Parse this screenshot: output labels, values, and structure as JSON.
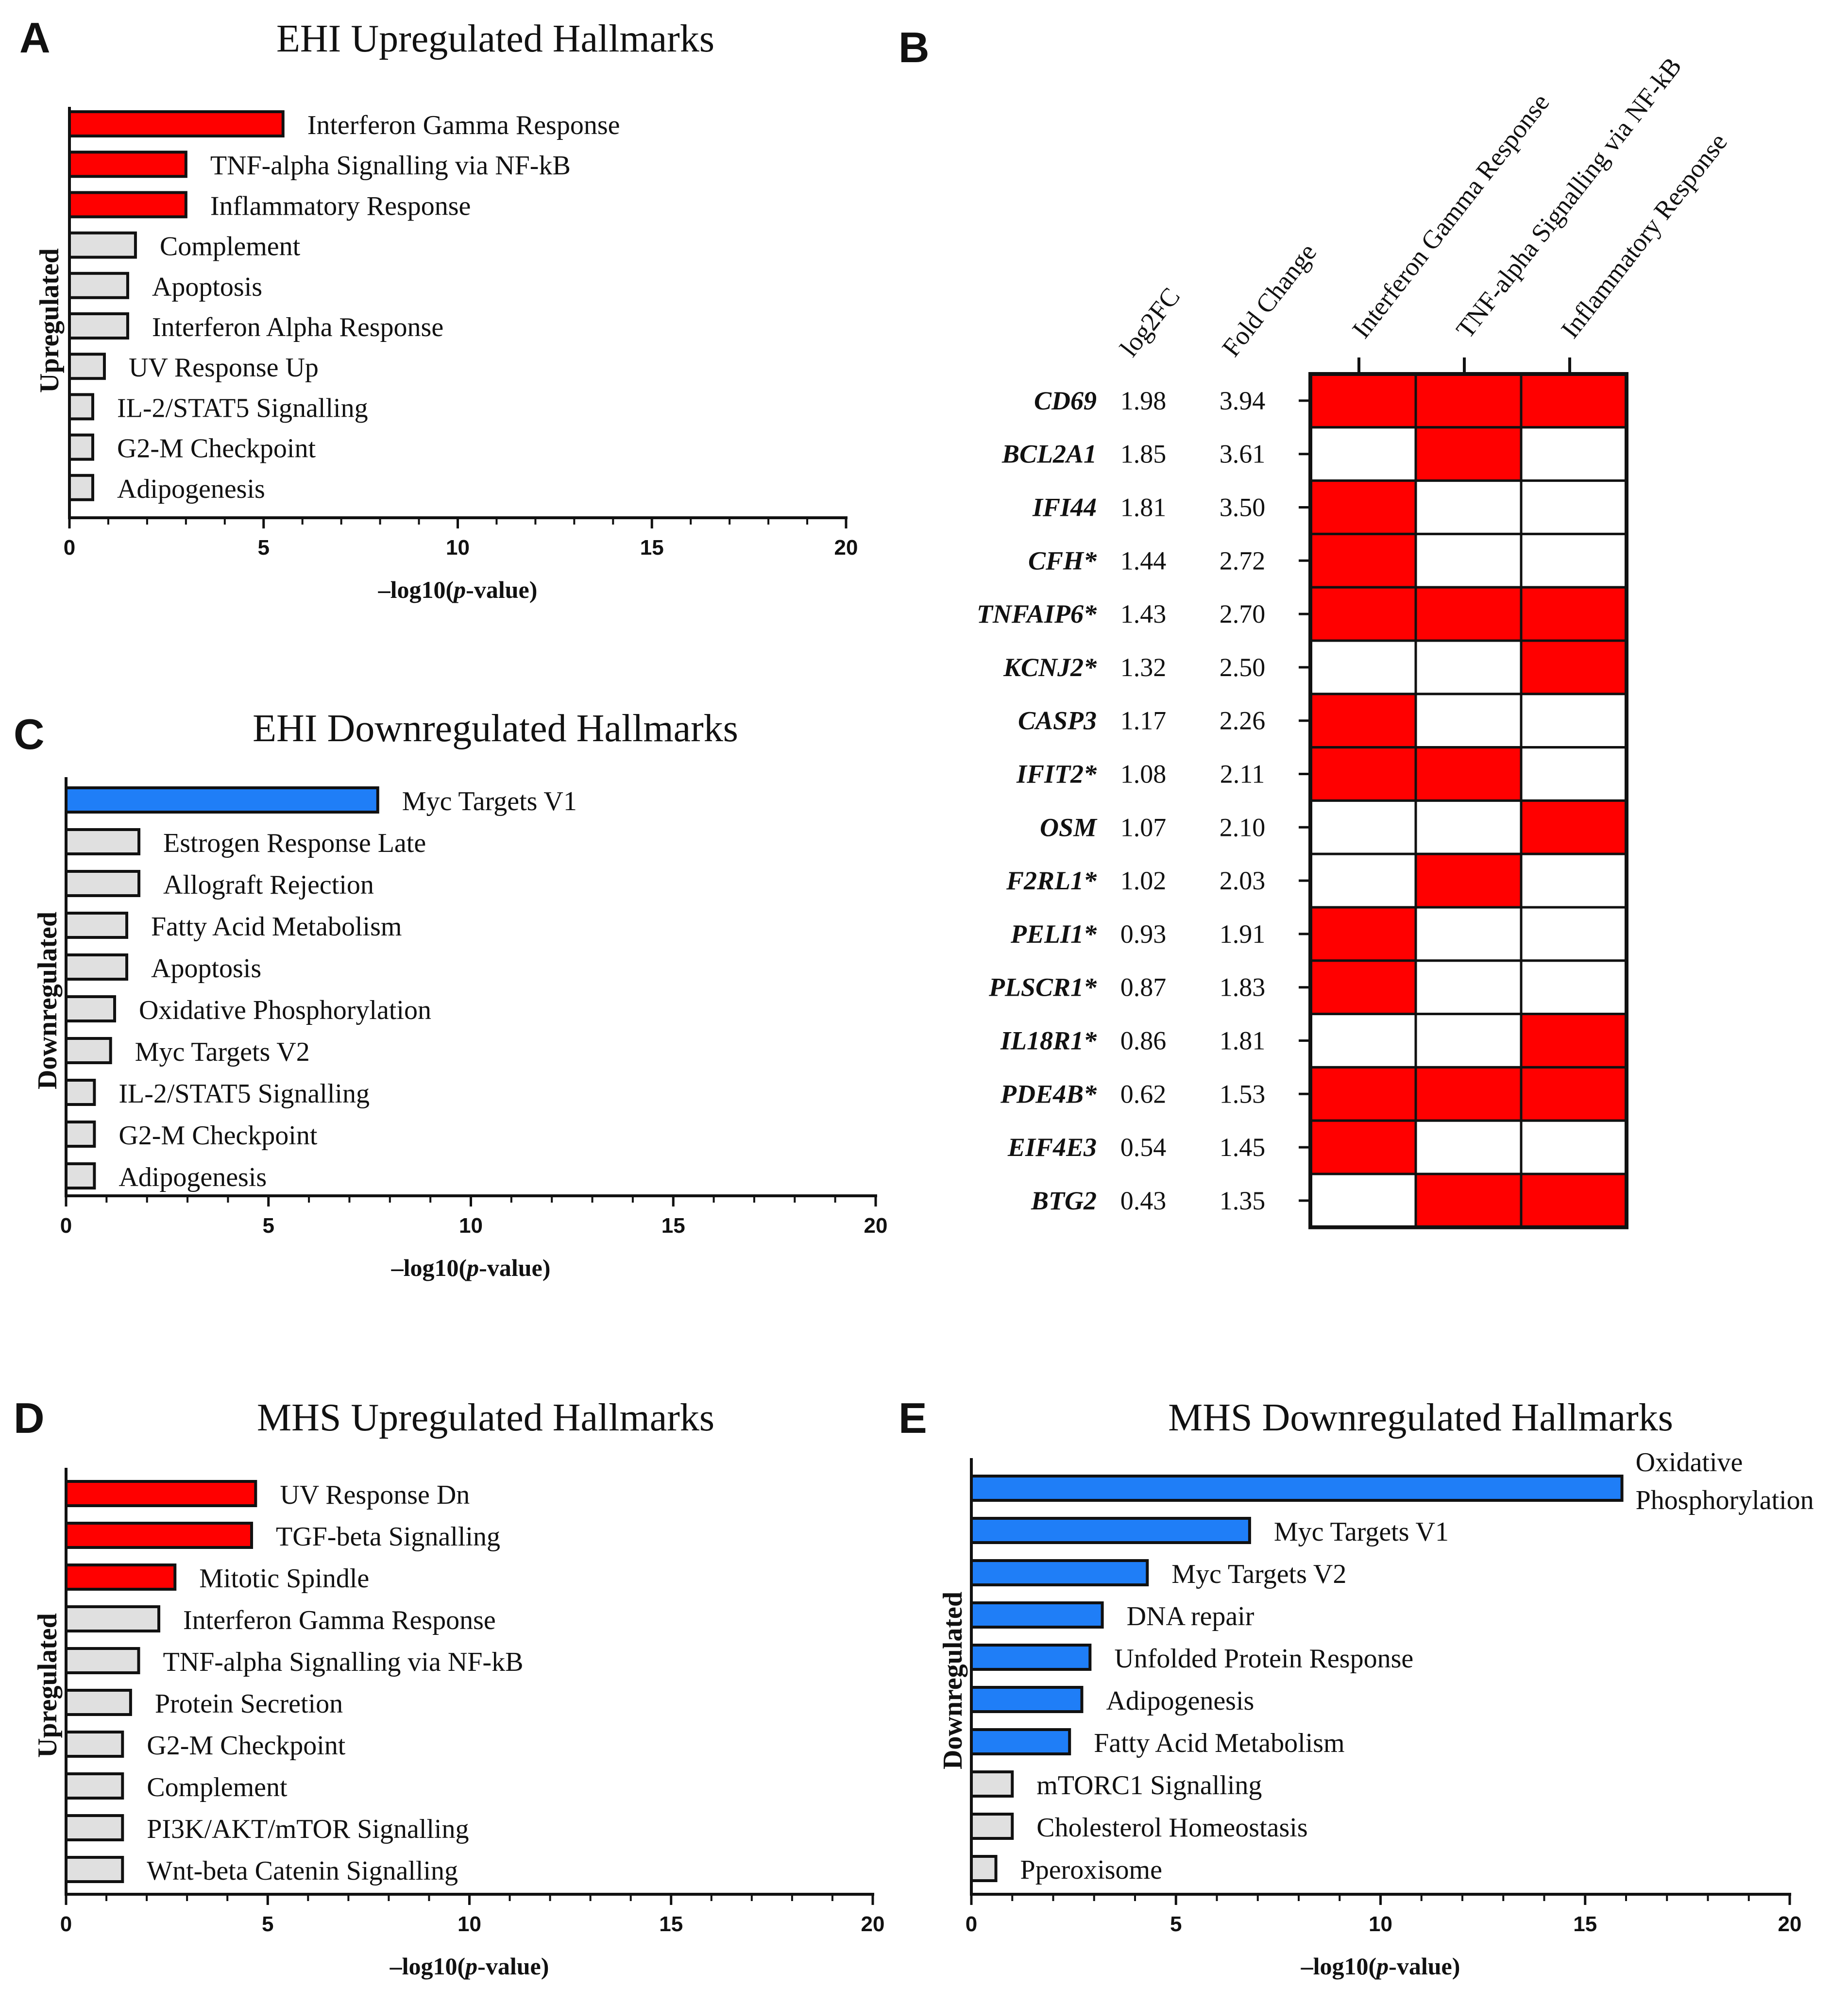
{
  "panels": {
    "A": {
      "letter": "A"
    },
    "B": {
      "letter": "B"
    },
    "C": {
      "letter": "C"
    },
    "D": {
      "letter": "D"
    },
    "E": {
      "letter": "E"
    }
  },
  "colors": {
    "upregulated": "#ff0000",
    "downregulated": "#1f7ef7",
    "nonsignificant": "#e0e0e0",
    "outline": "#111111",
    "heat_on": "#ff0000",
    "heat_off": "#ffffff"
  },
  "chart_data": [
    {
      "id": "A",
      "type": "bar",
      "orientation": "horizontal",
      "title": "EHI Upregulated Hallmarks",
      "ylabel": "Upregulated",
      "xlabel": "–log10(p-value)",
      "xlim": [
        0,
        20
      ],
      "xticks": [
        0,
        5,
        10,
        15,
        20
      ],
      "categories": [
        "Interferon Gamma Response",
        "TNF-alpha Signalling via NF-kB",
        "Inflammatory Response",
        "Complement",
        "Apoptosis",
        "Interferon Alpha Response",
        "UV Response Up",
        "IL-2/STAT5 Signalling",
        "G2-M Checkpoint",
        "Adipogenesis"
      ],
      "values": [
        5.5,
        3.0,
        3.0,
        1.7,
        1.5,
        1.5,
        0.9,
        0.6,
        0.6,
        0.6
      ],
      "significant": [
        true,
        true,
        true,
        false,
        false,
        false,
        false,
        false,
        false,
        false
      ]
    },
    {
      "id": "B",
      "type": "heatmap",
      "column_labels": [
        "log2FC",
        "Fold Change",
        "Interferon Gamma Response",
        "TNF-alpha Signalling via NF-kB",
        "Inflammatory Response"
      ],
      "pathways": [
        "Interferon Gamma Response",
        "TNF-alpha Signalling via NF-kB",
        "Inflammatory Response"
      ],
      "rows": [
        {
          "gene": "CD69",
          "log2fc": "1.98",
          "fc": "3.94",
          "cells": [
            1,
            1,
            1
          ]
        },
        {
          "gene": "BCL2A1",
          "log2fc": "1.85",
          "fc": "3.61",
          "cells": [
            0,
            1,
            0
          ]
        },
        {
          "gene": "IFI44",
          "log2fc": "1.81",
          "fc": "3.50",
          "cells": [
            1,
            0,
            0
          ]
        },
        {
          "gene": "CFH*",
          "log2fc": "1.44",
          "fc": "2.72",
          "cells": [
            1,
            0,
            0
          ]
        },
        {
          "gene": "TNFAIP6*",
          "log2fc": "1.43",
          "fc": "2.70",
          "cells": [
            1,
            1,
            1
          ]
        },
        {
          "gene": "KCNJ2*",
          "log2fc": "1.32",
          "fc": "2.50",
          "cells": [
            0,
            0,
            1
          ]
        },
        {
          "gene": "CASP3",
          "log2fc": "1.17",
          "fc": "2.26",
          "cells": [
            1,
            0,
            0
          ]
        },
        {
          "gene": "IFIT2*",
          "log2fc": "1.08",
          "fc": "2.11",
          "cells": [
            1,
            1,
            0
          ]
        },
        {
          "gene": "OSM",
          "log2fc": "1.07",
          "fc": "2.10",
          "cells": [
            0,
            0,
            1
          ]
        },
        {
          "gene": "F2RL1*",
          "log2fc": "1.02",
          "fc": "2.03",
          "cells": [
            0,
            1,
            0
          ]
        },
        {
          "gene": "PELI1*",
          "log2fc": "0.93",
          "fc": "1.91",
          "cells": [
            1,
            0,
            0
          ]
        },
        {
          "gene": "PLSCR1*",
          "log2fc": "0.87",
          "fc": "1.83",
          "cells": [
            1,
            0,
            0
          ]
        },
        {
          "gene": "IL18R1*",
          "log2fc": "0.86",
          "fc": "1.81",
          "cells": [
            0,
            0,
            1
          ]
        },
        {
          "gene": "PDE4B*",
          "log2fc": "0.62",
          "fc": "1.53",
          "cells": [
            1,
            1,
            1
          ]
        },
        {
          "gene": "EIF4E3",
          "log2fc": "0.54",
          "fc": "1.45",
          "cells": [
            1,
            0,
            0
          ]
        },
        {
          "gene": "BTG2",
          "log2fc": "0.43",
          "fc": "1.35",
          "cells": [
            0,
            1,
            1
          ]
        }
      ]
    },
    {
      "id": "C",
      "type": "bar",
      "orientation": "horizontal",
      "title": "EHI Downregulated Hallmarks",
      "ylabel": "Downregulated",
      "xlabel": "–log10(p-value)",
      "xlim": [
        0,
        20
      ],
      "xticks": [
        0,
        5,
        10,
        15,
        20
      ],
      "categories": [
        "Myc Targets V1",
        "Estrogen Response Late",
        "Allograft Rejection",
        "Fatty Acid Metabolism",
        "Apoptosis",
        "Oxidative Phosphorylation",
        "Myc Targets V2",
        "IL-2/STAT5 Signalling",
        "G2-M Checkpoint",
        "Adipogenesis"
      ],
      "values": [
        7.7,
        1.8,
        1.8,
        1.5,
        1.5,
        1.2,
        1.1,
        0.7,
        0.7,
        0.7
      ],
      "significant": [
        true,
        false,
        false,
        false,
        false,
        false,
        false,
        false,
        false,
        false
      ]
    },
    {
      "id": "D",
      "type": "bar",
      "orientation": "horizontal",
      "title": "MHS Upregulated Hallmarks",
      "ylabel": "Upregulated",
      "xlabel": "–log10(p-value)",
      "xlim": [
        0,
        20
      ],
      "xticks": [
        0,
        5,
        10,
        15,
        20
      ],
      "categories": [
        "UV Response Dn",
        "TGF-beta Signalling",
        "Mitotic Spindle",
        "Interferon Gamma Response",
        "TNF-alpha Signalling via NF-kB",
        "Protein Secretion",
        "G2-M Checkpoint",
        "Complement",
        "PI3K/AKT/mTOR Signalling",
        "Wnt-beta Catenin Signalling"
      ],
      "values": [
        4.7,
        4.6,
        2.7,
        2.3,
        1.8,
        1.6,
        1.4,
        1.4,
        1.4,
        1.4
      ],
      "significant": [
        true,
        true,
        true,
        false,
        false,
        false,
        false,
        false,
        false,
        false
      ]
    },
    {
      "id": "E",
      "type": "bar",
      "orientation": "horizontal",
      "title": "MHS Downregulated Hallmarks",
      "ylabel": "Downregulated",
      "xlabel": "–log10(p-value)",
      "xlim": [
        0,
        20
      ],
      "xticks": [
        0,
        5,
        10,
        15,
        20
      ],
      "categories": [
        "Oxidative Phosphorylation",
        "Myc Targets V1",
        "Myc Targets V2",
        "DNA repair",
        "Unfolded Protein Response",
        "Adipogenesis",
        "Fatty Acid Metabolism",
        "mTORC1 Signalling",
        "Cholesterol Homeostasis",
        "Pperoxisome"
      ],
      "values": [
        15.9,
        6.8,
        4.3,
        3.2,
        2.9,
        2.7,
        2.4,
        1.0,
        1.0,
        0.6
      ],
      "significant": [
        true,
        true,
        true,
        true,
        true,
        true,
        true,
        false,
        false,
        false
      ]
    }
  ]
}
